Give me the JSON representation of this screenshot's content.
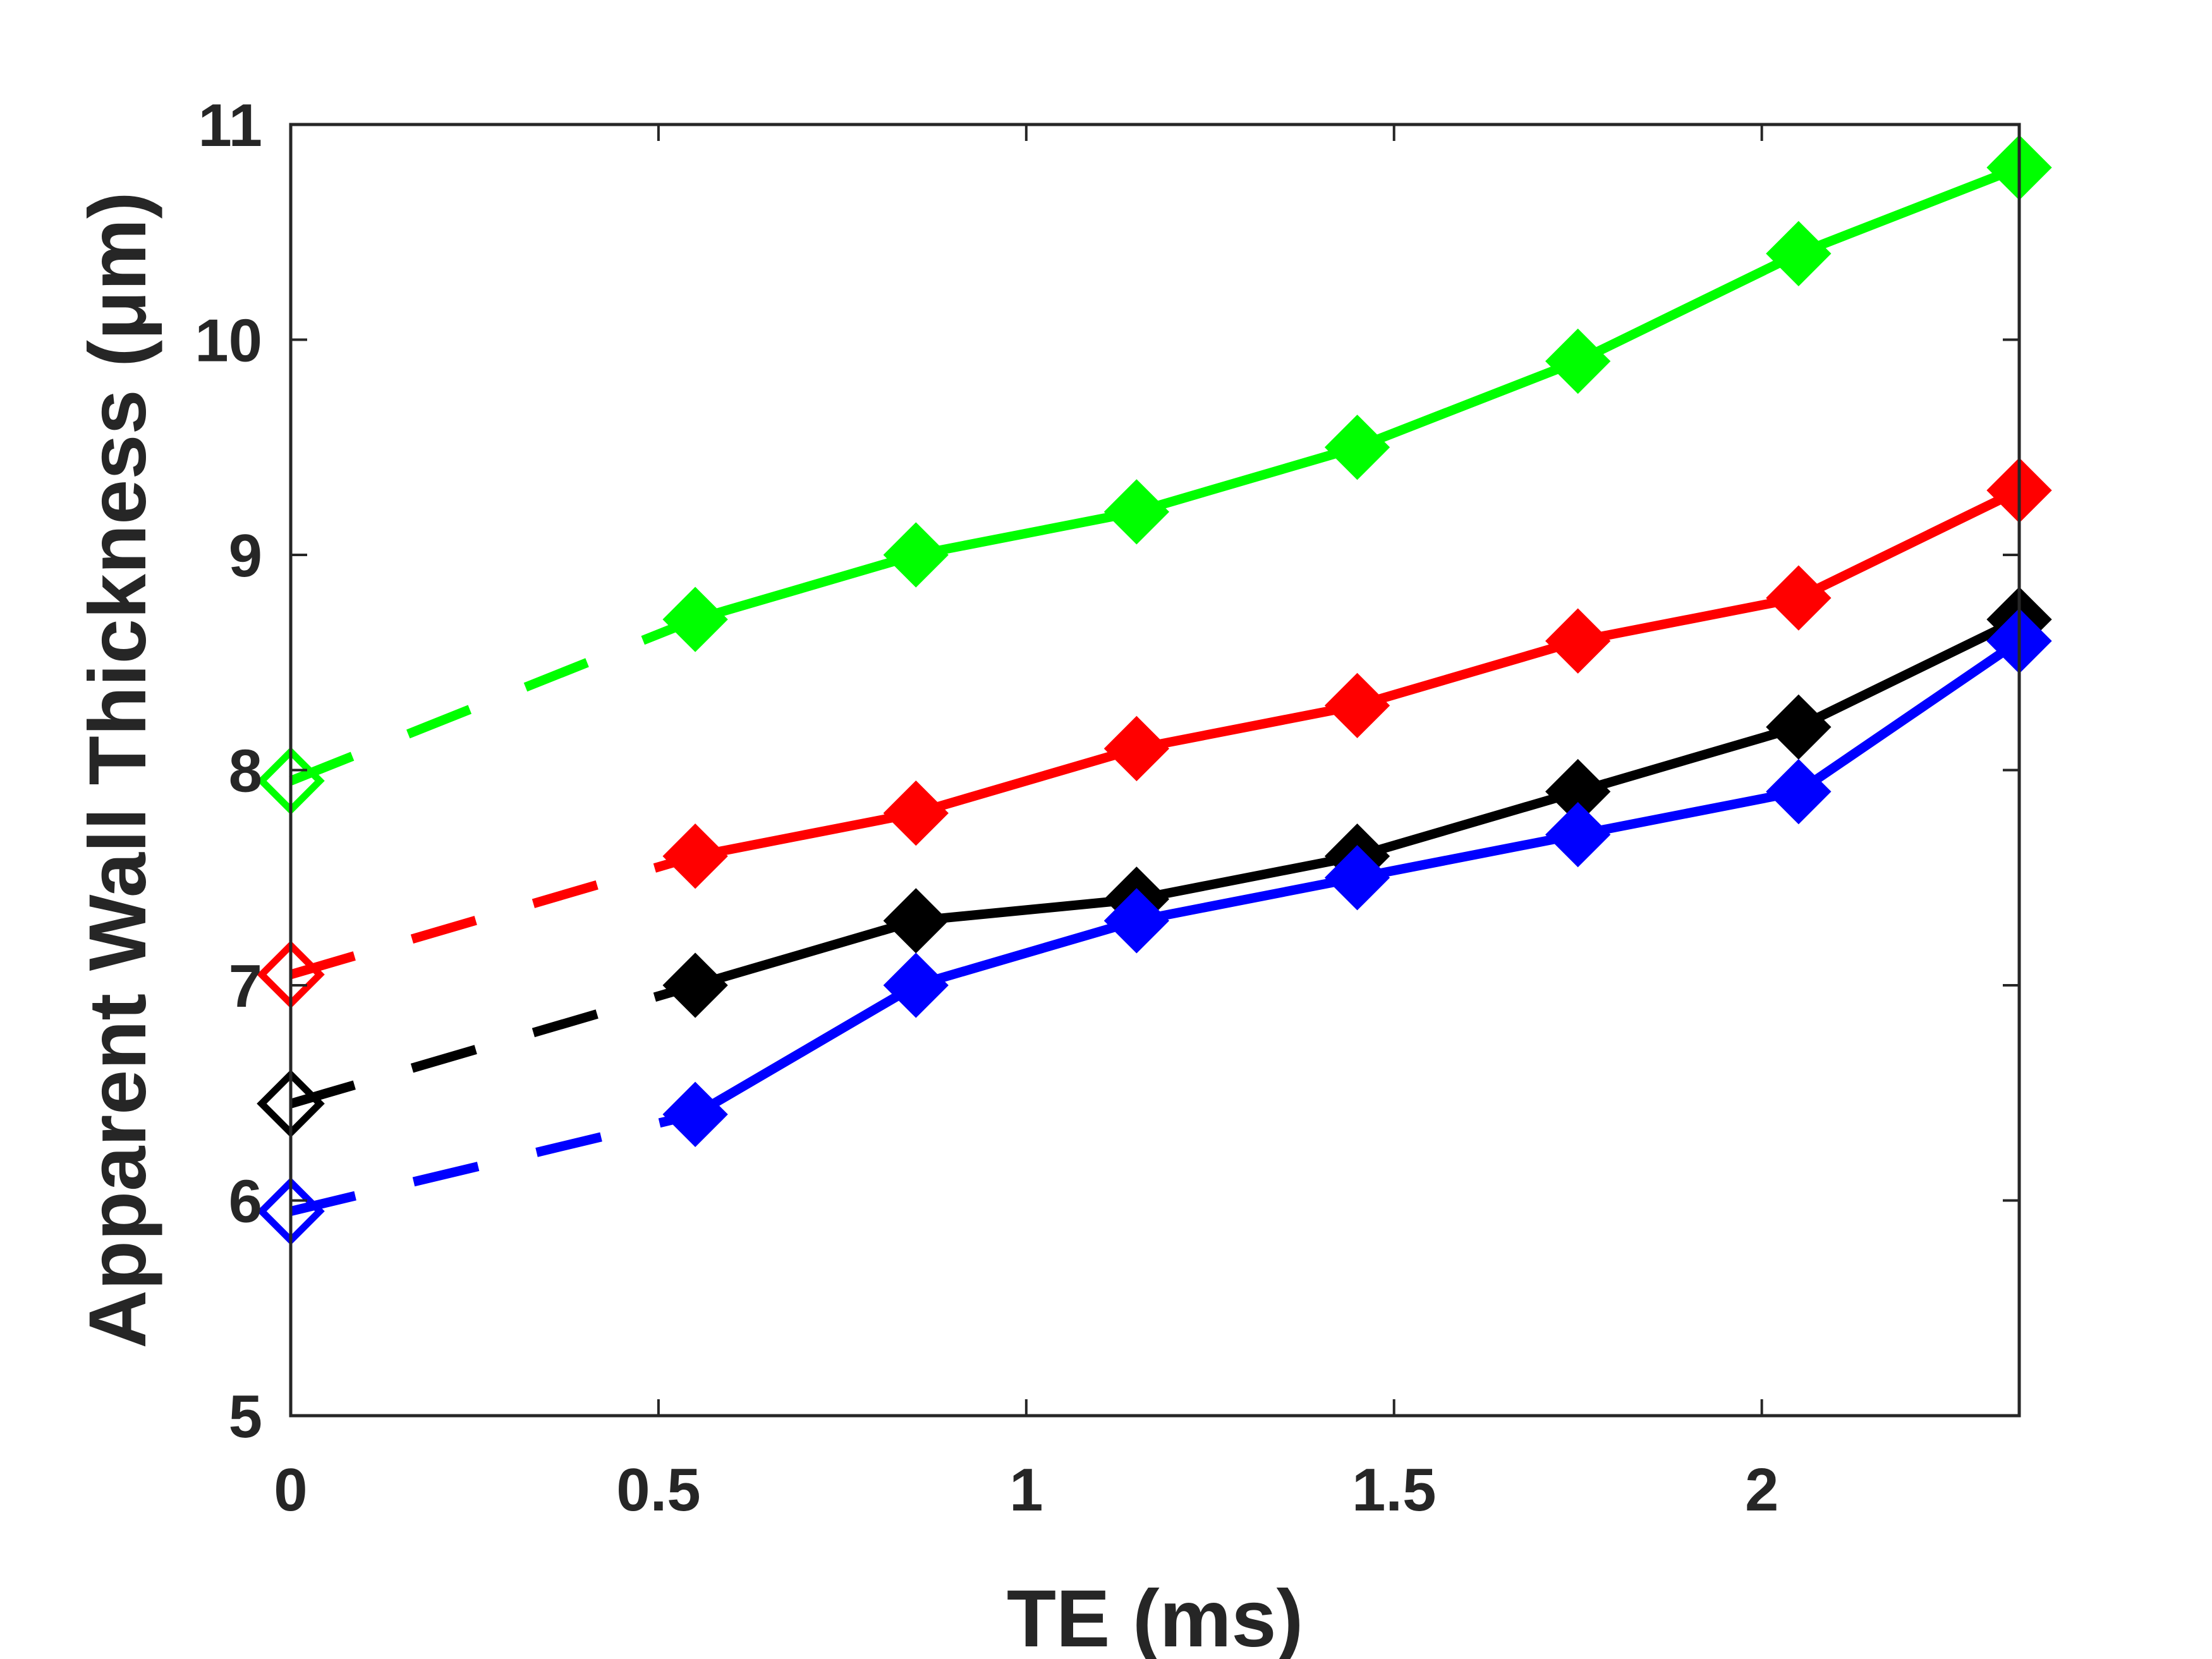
{
  "chart_data": {
    "type": "line",
    "title": "",
    "xlabel": "TE (ms)",
    "ylabel": "Apparent Wall Thickness (μm)",
    "xlim": [
      0,
      2.35
    ],
    "ylim": [
      5,
      11
    ],
    "xticks": [
      0,
      0.5,
      1,
      1.5,
      2
    ],
    "xtick_labels": [
      "0",
      "0.5",
      "1",
      "1.5",
      "2"
    ],
    "yticks": [
      5,
      6,
      7,
      8,
      9,
      10,
      11
    ],
    "ytick_labels": [
      "5",
      "6",
      "7",
      "8",
      "9",
      "10",
      "11"
    ],
    "grid": false,
    "legend": null,
    "extrapolated_point": {
      "x": 0
    },
    "measured_x": [
      0.55,
      0.85,
      1.15,
      1.45,
      1.75,
      2.05,
      2.35
    ],
    "series": [
      {
        "name": "green",
        "color": "#00ff00",
        "intercept": 7.95,
        "values": [
          8.7,
          9.0,
          9.2,
          9.5,
          9.9,
          10.4,
          10.8
        ]
      },
      {
        "name": "red",
        "color": "#ff0000",
        "intercept": 7.05,
        "values": [
          7.6,
          7.8,
          8.1,
          8.3,
          8.6,
          8.8,
          9.3
        ]
      },
      {
        "name": "black",
        "color": "#000000",
        "intercept": 6.45,
        "values": [
          7.0,
          7.3,
          7.4,
          7.6,
          7.9,
          8.2,
          8.7
        ]
      },
      {
        "name": "blue",
        "color": "#0000ff",
        "intercept": 5.95,
        "values": [
          6.4,
          7.0,
          7.3,
          7.5,
          7.7,
          7.9,
          8.6
        ]
      }
    ]
  }
}
